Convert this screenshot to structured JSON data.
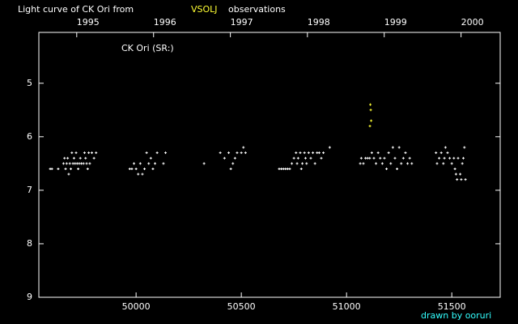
{
  "chart_data": {
    "type": "scatter",
    "title": "Light curve of CK Ori from",
    "title_source": "VSOLJ",
    "title_suffix": "observations",
    "annotation": "CK Ori (SR:)",
    "credit": "drawn by ooruri",
    "xlim": [
      49538,
      51730
    ],
    "xticks": [
      50000,
      50500,
      51000,
      51500
    ],
    "x2ticks": [
      {
        "value": 49718,
        "label": "1995"
      },
      {
        "value": 50083,
        "label": "1996"
      },
      {
        "value": 50448,
        "label": "1997"
      },
      {
        "value": 50814,
        "label": "1998"
      },
      {
        "value": 51179,
        "label": "1999"
      },
      {
        "value": 51544,
        "label": "2000"
      }
    ],
    "ylim": [
      4.05,
      9
    ],
    "y_inverted": true,
    "yticks": [
      5,
      6,
      7,
      8,
      9
    ],
    "series": [
      {
        "color": "#ffffff",
        "x": [
          49592,
          49600,
          49630,
          49655,
          49660,
          49665,
          49670,
          49675,
          49680,
          49685,
          49690,
          49695,
          49700,
          49705,
          49710,
          49715,
          49720,
          49725,
          49730,
          49735,
          49740,
          49750,
          49755,
          49760,
          49765,
          49770,
          49775,
          49780,
          49790,
          49800,
          49810,
          49970,
          49980,
          49990,
          50000,
          50010,
          50020,
          50030,
          50040,
          50050,
          50060,
          50070,
          50080,
          50090,
          50100,
          50130,
          50140,
          50323,
          50400,
          50420,
          50440,
          50450,
          50460,
          50470,
          50480,
          50500,
          50510,
          50520,
          50680,
          50690,
          50700,
          50710,
          50720,
          50730,
          50740,
          50750,
          50760,
          50765,
          50770,
          50780,
          50785,
          50790,
          50800,
          50805,
          50810,
          50820,
          50830,
          50840,
          50850,
          50860,
          50870,
          50880,
          50890,
          50920,
          51065,
          51070,
          51080,
          51090,
          51100,
          51110,
          51120,
          51130,
          51140,
          51150,
          51160,
          51170,
          51180,
          51190,
          51200,
          51210,
          51220,
          51230,
          51240,
          51250,
          51260,
          51270,
          51280,
          51290,
          51300,
          51310,
          51425,
          51430,
          51440,
          51450,
          51460,
          51465,
          51470,
          51480,
          51490,
          51500,
          51510,
          51515,
          51520,
          51525,
          51530,
          51540,
          51545,
          51550,
          51555,
          51560,
          51565
        ],
        "values": [
          6.6,
          6.6,
          6.6,
          6.5,
          6.4,
          6.6,
          6.5,
          6.4,
          6.7,
          6.5,
          6.6,
          6.3,
          6.5,
          6.4,
          6.5,
          6.3,
          6.5,
          6.6,
          6.5,
          6.4,
          6.5,
          6.5,
          6.3,
          6.4,
          6.5,
          6.6,
          6.3,
          6.5,
          6.3,
          6.4,
          6.3,
          6.6,
          6.6,
          6.5,
          6.6,
          6.7,
          6.5,
          6.7,
          6.6,
          6.3,
          6.5,
          6.4,
          6.6,
          6.5,
          6.3,
          6.5,
          6.3,
          6.5,
          6.3,
          6.4,
          6.3,
          6.6,
          6.5,
          6.4,
          6.3,
          6.3,
          6.2,
          6.3,
          6.6,
          6.6,
          6.6,
          6.6,
          6.6,
          6.6,
          6.5,
          6.4,
          6.3,
          6.5,
          6.4,
          6.3,
          6.6,
          6.5,
          6.3,
          6.4,
          6.5,
          6.3,
          6.4,
          6.3,
          6.5,
          6.3,
          6.3,
          6.4,
          6.3,
          6.2,
          6.5,
          6.4,
          6.5,
          6.4,
          6.4,
          6.4,
          6.3,
          6.4,
          6.5,
          6.3,
          6.4,
          6.5,
          6.4,
          6.6,
          6.3,
          6.5,
          6.2,
          6.4,
          6.6,
          6.2,
          6.5,
          6.4,
          6.3,
          6.5,
          6.4,
          6.5,
          6.3,
          6.5,
          6.4,
          6.3,
          6.5,
          6.4,
          6.2,
          6.3,
          6.4,
          6.5,
          6.4,
          6.6,
          6.7,
          6.8,
          6.4,
          6.7,
          6.8,
          6.5,
          6.4,
          6.2,
          6.8
        ]
      },
      {
        "color": "#ffff33",
        "x": [
          51111,
          51113,
          51115,
          51117
        ],
        "values": [
          5.8,
          5.4,
          5.5,
          5.7
        ]
      }
    ]
  }
}
